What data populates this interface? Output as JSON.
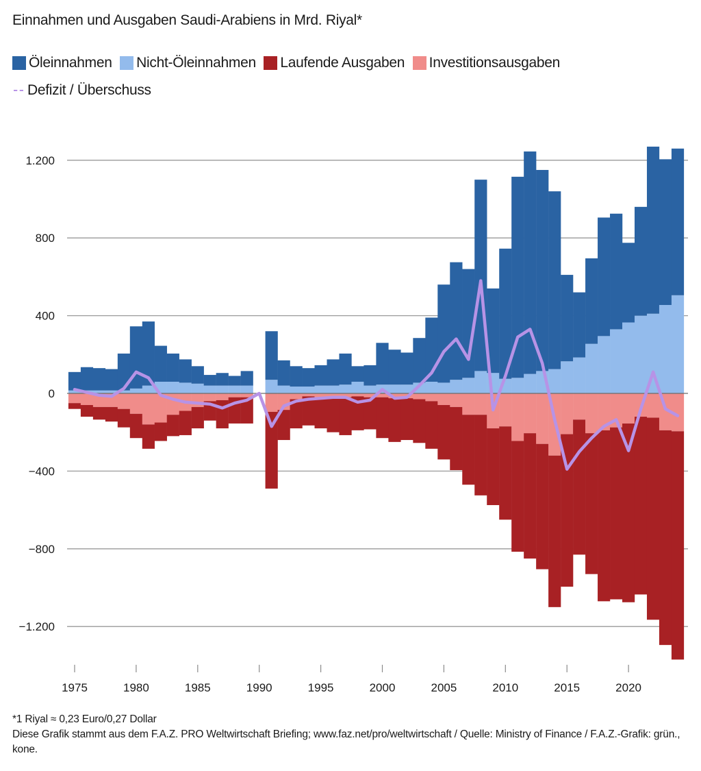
{
  "chart_data": {
    "type": "bar",
    "subtype": "stacked-bar-with-line",
    "title": "Einnahmen und Ausgaben Saudi-Arabiens in Mrd. Riyal*",
    "xlabel": "",
    "ylabel": "",
    "ylim": [
      -1350,
      1280
    ],
    "grid": true,
    "legend_position": "top-left",
    "y_ticks": [
      1200,
      800,
      400,
      0,
      -400,
      -800,
      -1200
    ],
    "y_tick_labels": [
      "1.200",
      "800",
      "400",
      "0",
      "−400",
      "−800",
      "−1.200"
    ],
    "x_ticks": [
      1975,
      1980,
      1985,
      1990,
      1995,
      2000,
      2005,
      2010,
      2015,
      2020
    ],
    "x_tick_labels": [
      "1975",
      "1980",
      "1985",
      "1990",
      "1995",
      "2000",
      "2005",
      "2010",
      "2015",
      "2020"
    ],
    "x": [
      1975,
      1976,
      1977,
      1978,
      1979,
      1980,
      1981,
      1982,
      1983,
      1984,
      1985,
      1986,
      1987,
      1988,
      1989,
      1990,
      1991,
      1992,
      1993,
      1994,
      1995,
      1996,
      1997,
      1998,
      1999,
      2000,
      2001,
      2002,
      2003,
      2004,
      2005,
      2006,
      2007,
      2008,
      2009,
      2010,
      2011,
      2012,
      2013,
      2014,
      2015,
      2016,
      2017,
      2018,
      2019,
      2020,
      2021,
      2022,
      2023,
      2024
    ],
    "series": [
      {
        "name": "Öleinnahmen",
        "type": "bar",
        "stack": "revenue",
        "color": "#2a63a3",
        "values": [
          95,
          120,
          115,
          110,
          190,
          320,
          330,
          185,
          145,
          120,
          90,
          55,
          65,
          50,
          75,
          null,
          250,
          130,
          105,
          95,
          105,
          135,
          160,
          80,
          105,
          215,
          180,
          165,
          230,
          330,
          505,
          605,
          560,
          985,
          435,
          670,
          1035,
          1145,
          1035,
          915,
          445,
          335,
          440,
          610,
          595,
          410,
          560,
          860,
          750,
          755
        ]
      },
      {
        "name": "Nicht-Öleinnahmen",
        "type": "bar",
        "stack": "revenue",
        "color": "#93bbec",
        "values": [
          15,
          15,
          15,
          15,
          15,
          25,
          40,
          60,
          60,
          55,
          50,
          40,
          40,
          40,
          40,
          null,
          70,
          40,
          35,
          35,
          40,
          40,
          45,
          60,
          40,
          45,
          45,
          45,
          55,
          60,
          55,
          70,
          80,
          115,
          105,
          75,
          80,
          100,
          115,
          125,
          165,
          185,
          255,
          295,
          330,
          365,
          400,
          410,
          455,
          505
        ]
      },
      {
        "name": "Laufende Ausgaben",
        "type": "bar",
        "stack": "expenditure",
        "color": "#a82124",
        "values": [
          -30,
          -60,
          -65,
          -75,
          -95,
          -125,
          -125,
          -95,
          -110,
          -125,
          -110,
          -100,
          -145,
          -135,
          -135,
          null,
          -395,
          -155,
          -150,
          -150,
          -160,
          -175,
          -195,
          -175,
          -165,
          -210,
          -225,
          -215,
          -225,
          -245,
          -280,
          -325,
          -360,
          -415,
          -395,
          -480,
          -570,
          -645,
          -645,
          -780,
          -785,
          -695,
          -725,
          -880,
          -885,
          -920,
          -915,
          -1040,
          -1105,
          -1175
        ]
      },
      {
        "name": "Investitionsausgaben",
        "type": "bar",
        "stack": "expenditure",
        "color": "#f08c8a",
        "values": [
          -50,
          -60,
          -70,
          -70,
          -80,
          -105,
          -160,
          -150,
          -110,
          -90,
          -70,
          -40,
          -35,
          -20,
          -20,
          null,
          -95,
          -85,
          -30,
          -15,
          -20,
          -25,
          -20,
          -15,
          -20,
          -20,
          -25,
          -25,
          -30,
          -40,
          -60,
          -70,
          -110,
          -110,
          -180,
          -170,
          -245,
          -205,
          -260,
          -320,
          -210,
          -135,
          -205,
          -190,
          -175,
          -155,
          -120,
          -125,
          -190,
          -195
        ]
      },
      {
        "name": "Defizit / Überschuss",
        "type": "line",
        "color": "#b793e6",
        "values": [
          20,
          5,
          -10,
          -15,
          25,
          110,
          80,
          -10,
          -30,
          -45,
          -50,
          -55,
          -75,
          -50,
          -35,
          0,
          -170,
          -65,
          -40,
          -30,
          -25,
          -20,
          -20,
          -45,
          -35,
          20,
          -25,
          -20,
          40,
          105,
          215,
          280,
          175,
          580,
          -85,
          90,
          290,
          330,
          155,
          -135,
          -390,
          -300,
          -230,
          -170,
          -135,
          -295,
          -80,
          110,
          -80,
          -115
        ]
      }
    ]
  },
  "header": {
    "title": "Einnahmen und Ausgaben Saudi-Arabiens in Mrd. Riyal*"
  },
  "legend": {
    "items": [
      {
        "label": "Öleinnahmen",
        "color": "#2a63a3",
        "kind": "square"
      },
      {
        "label": "Nicht-Öleinnahmen",
        "color": "#93bbec",
        "kind": "square"
      },
      {
        "label": "Laufende Ausgaben",
        "color": "#a82124",
        "kind": "square"
      },
      {
        "label": "Investitionsausgaben",
        "color": "#f08c8a",
        "kind": "square"
      },
      {
        "label": "Defizit / Überschuss",
        "color": "#b793e6",
        "kind": "dashed-line"
      }
    ]
  },
  "notes": {
    "footnote": "*1 Riyal ≈ 0,23 Euro/0,27 Dollar",
    "source": "Diese Grafik stammt aus dem F.A.Z. PRO Weltwirtschaft Briefing; www.faz.net/pro/weltwirtschaft / Quelle: Ministry of Finance / F.A.Z.-Grafik: grün., kone."
  }
}
